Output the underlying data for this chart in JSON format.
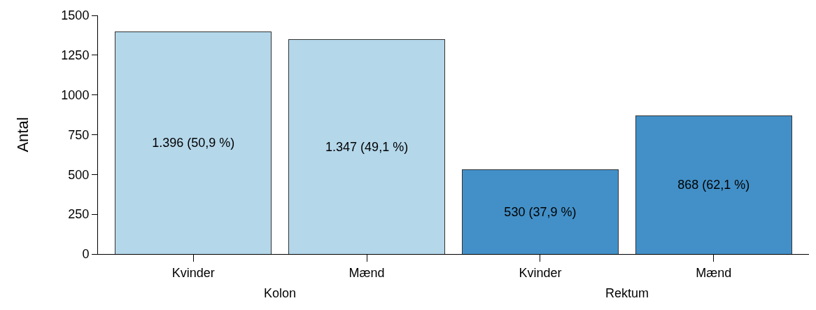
{
  "chart_data": {
    "type": "bar",
    "stacked": true,
    "ylabel": "Antal",
    "categories": [
      "Kvinder",
      "Mænd",
      "Kvinder",
      "Mænd"
    ],
    "series": [
      {
        "name": "Kolon",
        "color": "#b4d7ea",
        "values": [
          1396,
          1347,
          null,
          null
        ],
        "value_labels": [
          "1.396 (50,9 %)",
          "1.347 (49,1 %)",
          null,
          null
        ]
      },
      {
        "name": "Rektum",
        "color": "#4390c8",
        "values": [
          null,
          null,
          530,
          868
        ],
        "value_labels": [
          null,
          null,
          "530 (37,9 %)",
          "868 (62,1 %)"
        ]
      }
    ],
    "ylim": [
      0,
      1500
    ],
    "yticks": [
      0,
      250,
      500,
      750,
      1000,
      1250,
      1500
    ],
    "grid": false,
    "legend": false
  }
}
